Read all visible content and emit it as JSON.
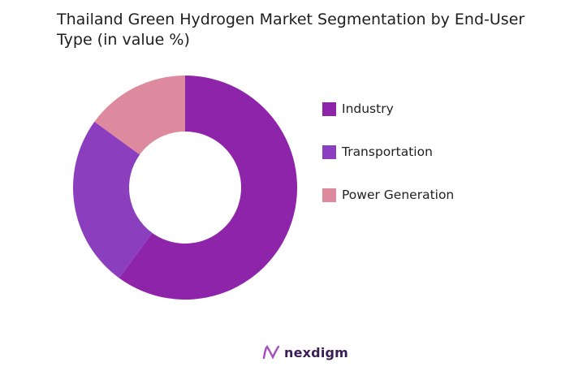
{
  "title": "Thailand Green Hydrogen Market Segmentation by End-User Type (in value %)",
  "chart_data": {
    "type": "pie",
    "variant": "donut",
    "title": "Thailand Green Hydrogen Market Segmentation by End-User Type (in value %)",
    "categories": [
      "Industry",
      "Transportation",
      "Power Generation"
    ],
    "values": [
      60,
      25,
      15
    ],
    "colors": [
      "#8e24aa",
      "#8b3fbf",
      "#de8a9e"
    ],
    "legend_position": "right"
  },
  "brand": {
    "name": "nexdigm",
    "logo_icon": "nexdigm-logo-icon"
  }
}
